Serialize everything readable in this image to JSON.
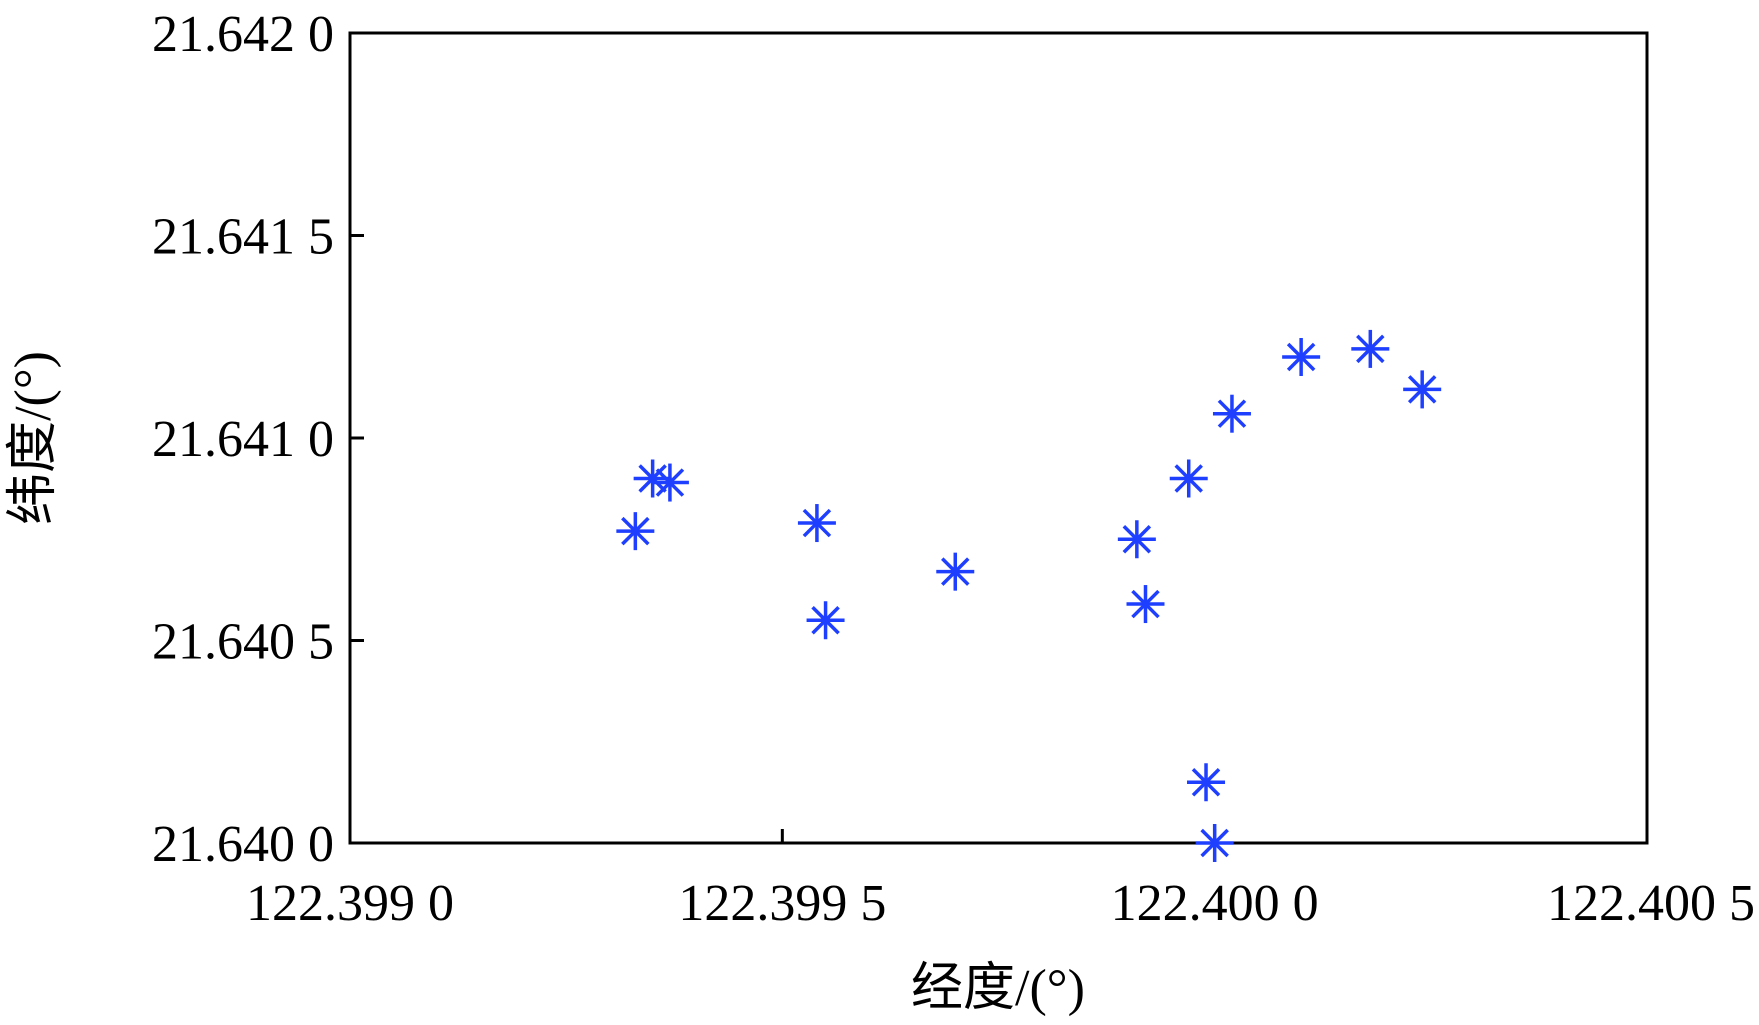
{
  "chart_data": {
    "type": "scatter",
    "title": "",
    "xlabel": "经度/(°)",
    "ylabel": "纬度/(°)",
    "xlim": [
      122.399,
      122.4005
    ],
    "ylim": [
      21.64,
      21.642
    ],
    "x_ticks": [
      {
        "value": 122.399,
        "label": "122.399 0"
      },
      {
        "value": 122.3995,
        "label": "122.399 5"
      },
      {
        "value": 122.4,
        "label": "122.400 0"
      },
      {
        "value": 122.4005,
        "label": "122.400 5"
      }
    ],
    "y_ticks": [
      {
        "value": 21.64,
        "label": "21.640 0"
      },
      {
        "value": 21.6405,
        "label": "21.640 5"
      },
      {
        "value": 21.641,
        "label": "21.641 0"
      },
      {
        "value": 21.6415,
        "label": "21.641 5"
      },
      {
        "value": 21.642,
        "label": "21.642 0"
      }
    ],
    "grid": false,
    "marker": "asterisk",
    "series": [
      {
        "color": "#1f3fff",
        "points": [
          {
            "x": 122.39933,
            "y": 21.64077
          },
          {
            "x": 122.39935,
            "y": 21.6409
          },
          {
            "x": 122.39937,
            "y": 21.64089
          },
          {
            "x": 122.39954,
            "y": 21.64079
          },
          {
            "x": 122.39955,
            "y": 21.64055
          },
          {
            "x": 122.3997,
            "y": 21.64067
          },
          {
            "x": 122.39991,
            "y": 21.64075
          },
          {
            "x": 122.39992,
            "y": 21.64059
          },
          {
            "x": 122.39997,
            "y": 21.6409
          },
          {
            "x": 122.39999,
            "y": 21.64015
          },
          {
            "x": 122.4,
            "y": 21.64
          },
          {
            "x": 122.40002,
            "y": 21.64106
          },
          {
            "x": 122.4001,
            "y": 21.6412
          },
          {
            "x": 122.40018,
            "y": 21.64122
          },
          {
            "x": 122.40024,
            "y": 21.64112
          }
        ]
      }
    ]
  }
}
